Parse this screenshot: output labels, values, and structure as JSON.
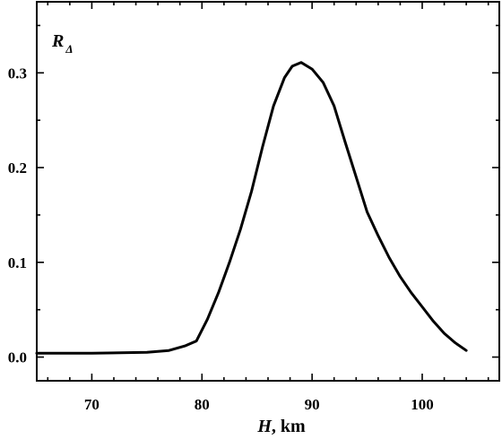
{
  "chart_data": {
    "type": "line",
    "xlabel_var": "H",
    "xlabel_unit": ", km",
    "ylabel_main": "R",
    "ylabel_sub": "Δ",
    "xlim": [
      65,
      107
    ],
    "ylim": [
      -0.025,
      0.375
    ],
    "xticks": [
      70,
      80,
      90,
      100
    ],
    "yticks": [
      0.0,
      0.1,
      0.2,
      0.3
    ],
    "xtick_labels": [
      "70",
      "80",
      "90",
      "100"
    ],
    "ytick_labels": [
      "0.0",
      "0.1",
      "0.2",
      "0.3"
    ],
    "grid": false,
    "series": [
      {
        "color": "#000000",
        "x": [
          65,
          70,
          75,
          77,
          78.5,
          79.5,
          80.5,
          81.5,
          82.5,
          83.5,
          84.5,
          85.5,
          86.5,
          87.5,
          88.2,
          89,
          90,
          91,
          92,
          93,
          94,
          95,
          96,
          97,
          98,
          99,
          100,
          101,
          102,
          103,
          104
        ],
        "y": [
          0.004,
          0.004,
          0.005,
          0.007,
          0.012,
          0.017,
          0.04,
          0.068,
          0.1,
          0.135,
          0.175,
          0.222,
          0.265,
          0.295,
          0.307,
          0.311,
          0.304,
          0.29,
          0.265,
          0.227,
          0.19,
          0.153,
          0.128,
          0.105,
          0.085,
          0.068,
          0.053,
          0.038,
          0.025,
          0.015,
          0.007
        ]
      }
    ]
  }
}
